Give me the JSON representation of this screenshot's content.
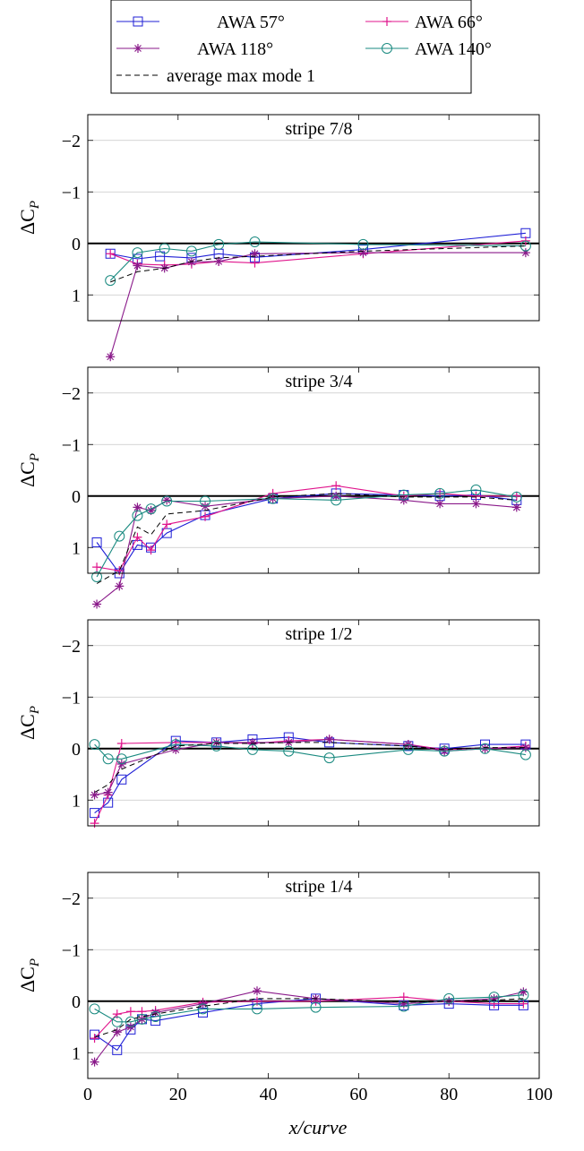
{
  "legend": {
    "entries": [
      {
        "label": "AWA 57°",
        "series_id": "awa57"
      },
      {
        "label": "AWA 66°",
        "series_id": "awa66"
      },
      {
        "label": "AWA 118°",
        "series_id": "awa118"
      },
      {
        "label": "AWA 140°",
        "series_id": "awa140"
      },
      {
        "label": "average max mode 1",
        "series_id": "avg"
      }
    ]
  },
  "colors": {
    "awa57": "#1f1fd6",
    "awa66": "#e0148c",
    "awa118": "#8a1a8a",
    "awa140": "#1a8a80",
    "avg": "#000000"
  },
  "xlabel": "x/curve",
  "ylabel": "ΔC",
  "ylabel_sub": "P",
  "chart_data": [
    {
      "type": "line",
      "title": "stripe 7/8",
      "xlim": [
        0,
        100
      ],
      "ylim": [
        1.5,
        -2.5
      ],
      "yticks": [
        -2,
        -1,
        0,
        1
      ],
      "xticks": [
        0,
        20,
        40,
        60,
        80,
        100
      ],
      "grid": true,
      "series": [
        {
          "name": "AWA 57°",
          "x": [
            5,
            11,
            16,
            23,
            29,
            37,
            61,
            97
          ],
          "y": [
            0.2,
            0.3,
            0.25,
            0.28,
            0.2,
            0.27,
            0.12,
            -0.2
          ]
        },
        {
          "name": "AWA 66°",
          "x": [
            5,
            11,
            17,
            23,
            29,
            37,
            61,
            97
          ],
          "y": [
            0.2,
            0.4,
            0.42,
            0.4,
            0.35,
            0.38,
            0.2,
            -0.05
          ]
        },
        {
          "name": "AWA 118°",
          "x": [
            5,
            11,
            17,
            23,
            29,
            37,
            61,
            97
          ],
          "y": [
            2.2,
            0.43,
            0.48,
            0.36,
            0.35,
            0.2,
            0.18,
            0.18
          ]
        },
        {
          "name": "AWA 140°",
          "x": [
            5,
            11,
            17,
            23,
            29,
            37,
            61,
            97
          ],
          "y": [
            0.72,
            0.18,
            0.1,
            0.15,
            0.02,
            -0.03,
            0.02,
            0.05
          ]
        },
        {
          "name": "average max mode 1",
          "x": [
            5,
            11,
            17,
            23,
            29,
            37,
            61,
            97
          ],
          "y": [
            0.75,
            0.55,
            0.48,
            0.35,
            0.28,
            0.25,
            0.15,
            0.05
          ]
        }
      ]
    },
    {
      "type": "line",
      "title": "stripe 3/4",
      "xlim": [
        0,
        100
      ],
      "ylim": [
        1.5,
        -2.5
      ],
      "yticks": [
        -2,
        -1,
        0,
        1
      ],
      "xticks": [
        0,
        20,
        40,
        60,
        80,
        100
      ],
      "grid": true,
      "series": [
        {
          "name": "AWA 57°",
          "x": [
            2,
            7,
            11,
            14,
            17.5,
            26,
            41,
            55,
            70,
            78,
            86,
            95
          ],
          "y": [
            0.9,
            1.5,
            0.95,
            1.0,
            0.72,
            0.37,
            0.05,
            -0.05,
            -0.02,
            0.0,
            -0.02,
            0.08
          ]
        },
        {
          "name": "AWA 66°",
          "x": [
            2,
            7,
            11,
            14,
            17.5,
            26,
            41,
            55,
            70,
            78,
            86,
            95
          ],
          "y": [
            1.38,
            1.45,
            0.8,
            1.05,
            0.55,
            0.4,
            -0.05,
            -0.2,
            0.0,
            -0.05,
            0.0,
            0.0
          ]
        },
        {
          "name": "AWA 118°",
          "x": [
            2,
            7,
            11,
            14,
            17.5,
            26,
            41,
            55,
            70,
            78,
            86,
            95
          ],
          "y": [
            2.1,
            1.75,
            0.22,
            0.28,
            0.08,
            0.2,
            0.05,
            0.0,
            0.08,
            0.15,
            0.15,
            0.22
          ]
        },
        {
          "name": "AWA 140°",
          "x": [
            2,
            7,
            11,
            14,
            17.5,
            26,
            41,
            55,
            70,
            78,
            86,
            95
          ],
          "y": [
            1.57,
            0.78,
            0.38,
            0.25,
            0.1,
            0.1,
            0.05,
            0.08,
            -0.02,
            -0.05,
            -0.12,
            0.02
          ]
        },
        {
          "name": "average max mode 1",
          "x": [
            2,
            7,
            11,
            14,
            17.5,
            26,
            41,
            55,
            70,
            78,
            86,
            95
          ],
          "y": [
            1.7,
            1.45,
            0.6,
            0.75,
            0.35,
            0.28,
            0.02,
            -0.05,
            0.02,
            0.02,
            0.02,
            0.08
          ]
        }
      ]
    },
    {
      "type": "line",
      "title": "stripe 1/2",
      "xlim": [
        0,
        100
      ],
      "ylim": [
        1.5,
        -2.5
      ],
      "yticks": [
        -2,
        -1,
        0,
        1
      ],
      "xticks": [
        0,
        20,
        40,
        60,
        80,
        100
      ],
      "grid": true,
      "series": [
        {
          "name": "AWA 57°",
          "x": [
            1.5,
            4.5,
            7.5,
            19.5,
            28.5,
            36.5,
            44.5,
            53.5,
            71,
            79,
            88,
            97
          ],
          "y": [
            1.25,
            1.05,
            0.6,
            -0.15,
            -0.12,
            -0.18,
            -0.22,
            -0.12,
            -0.05,
            0.0,
            -0.08,
            -0.08
          ]
        },
        {
          "name": "AWA 66°",
          "x": [
            1.5,
            4.5,
            7.5,
            19.5,
            28.5,
            36.5,
            44.5,
            53.5,
            71,
            79,
            88,
            97
          ],
          "y": [
            1.45,
            0.9,
            -0.1,
            -0.12,
            -0.12,
            -0.1,
            -0.15,
            -0.18,
            -0.08,
            0.02,
            0.0,
            -0.05
          ]
        },
        {
          "name": "AWA 118°",
          "x": [
            1.5,
            4.5,
            7.5,
            19.5,
            28.5,
            36.5,
            44.5,
            53.5,
            71,
            79,
            88,
            97
          ],
          "y": [
            0.9,
            0.85,
            0.3,
            0.02,
            -0.12,
            -0.12,
            -0.12,
            -0.18,
            -0.08,
            0.05,
            0.0,
            -0.02
          ]
        },
        {
          "name": "AWA 140°",
          "x": [
            1.5,
            4.5,
            7.5,
            19.5,
            28.5,
            36.5,
            44.5,
            53.5,
            71,
            79,
            88,
            97
          ],
          "y": [
            -0.08,
            0.2,
            0.2,
            -0.08,
            -0.05,
            0.02,
            0.05,
            0.18,
            0.02,
            0.05,
            0.0,
            0.12
          ]
        },
        {
          "name": "average max mode 1",
          "x": [
            1.5,
            4.5,
            7.5,
            19.5,
            28.5,
            36.5,
            44.5,
            53.5,
            71,
            79,
            88,
            97
          ],
          "y": [
            0.85,
            0.7,
            0.4,
            -0.05,
            -0.1,
            -0.1,
            -0.12,
            -0.12,
            -0.05,
            0.02,
            -0.02,
            -0.02
          ]
        }
      ]
    },
    {
      "type": "line",
      "title": "stripe 1/4",
      "xlim": [
        0,
        100
      ],
      "ylim": [
        1.5,
        -2.5
      ],
      "yticks": [
        -2,
        -1,
        0,
        1
      ],
      "xticks": [
        0,
        20,
        40,
        60,
        80,
        100
      ],
      "grid": true,
      "series": [
        {
          "name": "AWA 57°",
          "x": [
            1.5,
            6.5,
            9.5,
            12,
            15,
            25.5,
            37.5,
            50.5,
            70,
            80,
            90,
            96.5
          ],
          "y": [
            0.65,
            0.95,
            0.55,
            0.35,
            0.38,
            0.22,
            0.05,
            -0.05,
            0.08,
            0.05,
            0.08,
            0.08
          ]
        },
        {
          "name": "AWA 66°",
          "x": [
            1.5,
            6.5,
            9.5,
            12,
            15,
            25.5,
            37.5,
            50.5,
            70,
            80,
            90,
            96.5
          ],
          "y": [
            0.72,
            0.25,
            0.2,
            0.2,
            0.18,
            0.02,
            0.0,
            0.0,
            -0.08,
            0.0,
            0.05,
            0.05
          ]
        },
        {
          "name": "AWA 118°",
          "x": [
            1.5,
            6.5,
            9.5,
            12,
            15,
            25.5,
            37.5,
            50.5,
            70,
            80,
            90,
            96.5
          ],
          "y": [
            1.18,
            0.6,
            0.5,
            0.35,
            0.22,
            0.05,
            -0.2,
            -0.05,
            0.05,
            0.0,
            -0.05,
            -0.18
          ]
        },
        {
          "name": "AWA 140°",
          "x": [
            1.5,
            6.5,
            9.5,
            12,
            15,
            25.5,
            37.5,
            50.5,
            70,
            80,
            90,
            96.5
          ],
          "y": [
            0.15,
            0.4,
            0.4,
            0.35,
            0.3,
            0.15,
            0.15,
            0.12,
            0.1,
            -0.05,
            -0.08,
            -0.12
          ]
        },
        {
          "name": "average max mode 1",
          "x": [
            1.5,
            6.5,
            9.5,
            12,
            15,
            25.5,
            37.5,
            50.5,
            70,
            80,
            90,
            96.5
          ],
          "y": [
            0.7,
            0.55,
            0.35,
            0.3,
            0.25,
            0.1,
            -0.05,
            -0.05,
            0.02,
            0.0,
            -0.02,
            -0.05
          ]
        }
      ]
    }
  ]
}
